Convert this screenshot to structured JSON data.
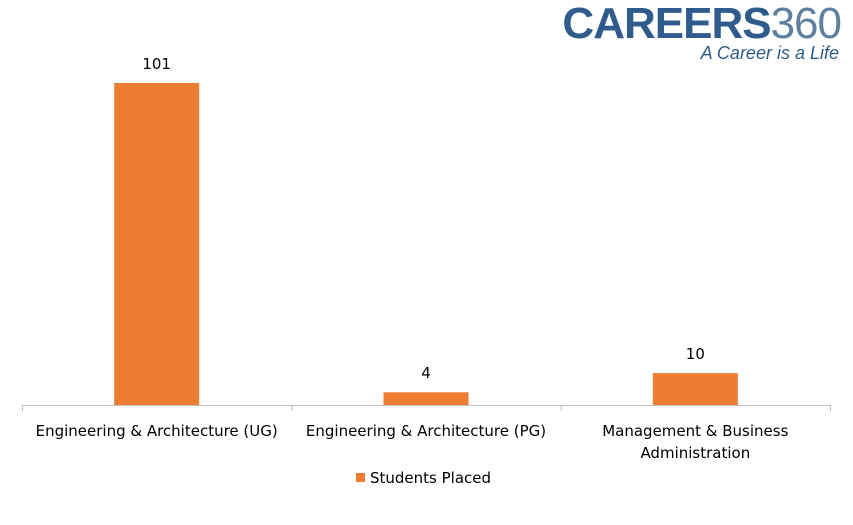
{
  "logo": {
    "brand": "CAREERS",
    "brand_num": "360",
    "tagline": "A Career is a Life"
  },
  "chart_data": {
    "type": "bar",
    "categories": [
      [
        "Engineering & Architecture (UG)"
      ],
      [
        "Engineering & Architecture (PG)"
      ],
      [
        "Management & Business",
        "Administration"
      ]
    ],
    "series": [
      {
        "name": "Students Placed",
        "values": [
          101,
          4,
          10
        ],
        "color": "#ed7d31"
      }
    ],
    "ylim": [
      0,
      101
    ],
    "grid": false,
    "legend_position": "bottom",
    "axis_color": "#bfbfbf"
  }
}
